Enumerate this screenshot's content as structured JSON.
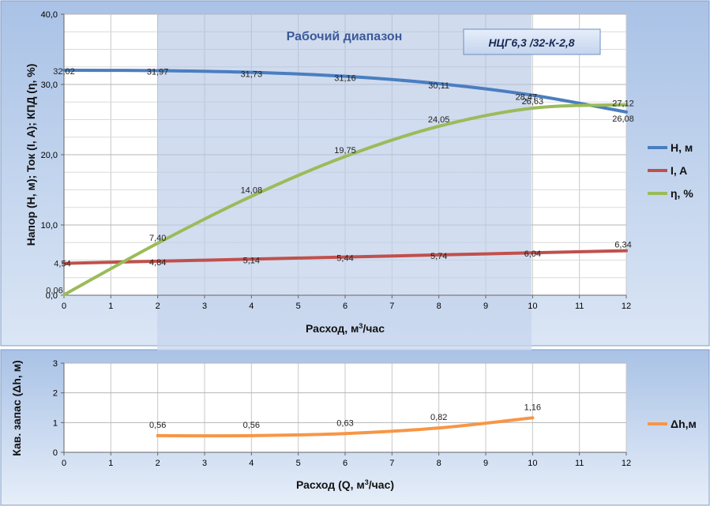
{
  "banner": "Рабочий диапазон",
  "model_label": "НЦГ6,3 /32-К-2,8",
  "colors": {
    "H": "#4a7ec0",
    "I": "#c0504d",
    "eta": "#9bbb59",
    "dh": "#f79646",
    "panel_top": "#a9c2e6",
    "panel_bottom": "#dbe6f5",
    "range_band": "#bfd0ea"
  },
  "chart_data": [
    {
      "type": "line",
      "xlabel": "Расход, м",
      "xlabel_sup": "3",
      "xlabel_suffix": "/час",
      "ylabel": "Напор (Н, м); Ток  (I, А); КПД (η, %)",
      "xlim": [
        0,
        12
      ],
      "ylim": [
        0,
        40
      ],
      "x_ticks": [
        "0",
        "1",
        "2",
        "3",
        "4",
        "5",
        "6",
        "7",
        "8",
        "9",
        "10",
        "11",
        "12"
      ],
      "y_ticks": [
        "0,0",
        "10,0",
        "20,0",
        "30,0",
        "40,0"
      ],
      "working_range": [
        2,
        10
      ],
      "grid": true,
      "legend_position": "right",
      "series": [
        {
          "name": "Н, м",
          "key": "H",
          "x": [
            0,
            2,
            4,
            6,
            8,
            10,
            12
          ],
          "y": [
            32.02,
            31.97,
            31.73,
            31.16,
            30.11,
            28.47,
            26.08
          ],
          "labels": [
            "32,02",
            "31,97",
            "31,73",
            "31,16",
            "30,11",
            "28,47",
            "26,08"
          ]
        },
        {
          "name": "I, A",
          "key": "I",
          "x": [
            0,
            2,
            4,
            6,
            8,
            10,
            12
          ],
          "y": [
            4.54,
            4.84,
            5.14,
            5.44,
            5.74,
            6.04,
            6.34
          ],
          "labels": [
            "4,54",
            "4,84",
            "5,14",
            "5,44",
            "5,74",
            "6,04",
            "6,34"
          ]
        },
        {
          "name": "η, %",
          "key": "eta",
          "x": [
            0,
            2,
            4,
            6,
            8,
            10,
            12
          ],
          "y": [
            0.06,
            7.4,
            14.08,
            19.75,
            24.05,
            26.63,
            27.12
          ],
          "labels": [
            "0,06",
            "7,40",
            "14,08",
            "19,75",
            "24,05",
            "26,63",
            "27,12"
          ]
        }
      ]
    },
    {
      "type": "line",
      "xlabel": "Расход (Q, м",
      "xlabel_sup": "3",
      "xlabel_suffix": "/час)",
      "ylabel": "Кав. запас (Δh, м)",
      "xlim": [
        0,
        12
      ],
      "ylim": [
        0,
        3
      ],
      "x_ticks": [
        "0",
        "1",
        "2",
        "3",
        "4",
        "5",
        "6",
        "7",
        "8",
        "9",
        "10",
        "11",
        "12"
      ],
      "y_ticks": [
        "0",
        "1",
        "2",
        "3"
      ],
      "grid": true,
      "legend_position": "right",
      "series": [
        {
          "name": "Δh,м",
          "key": "dh",
          "x": [
            2,
            4,
            6,
            8,
            10
          ],
          "y": [
            0.56,
            0.56,
            0.63,
            0.82,
            1.16
          ],
          "labels": [
            "0,56",
            "0,56",
            "0,63",
            "0,82",
            "1,16"
          ]
        }
      ]
    }
  ]
}
